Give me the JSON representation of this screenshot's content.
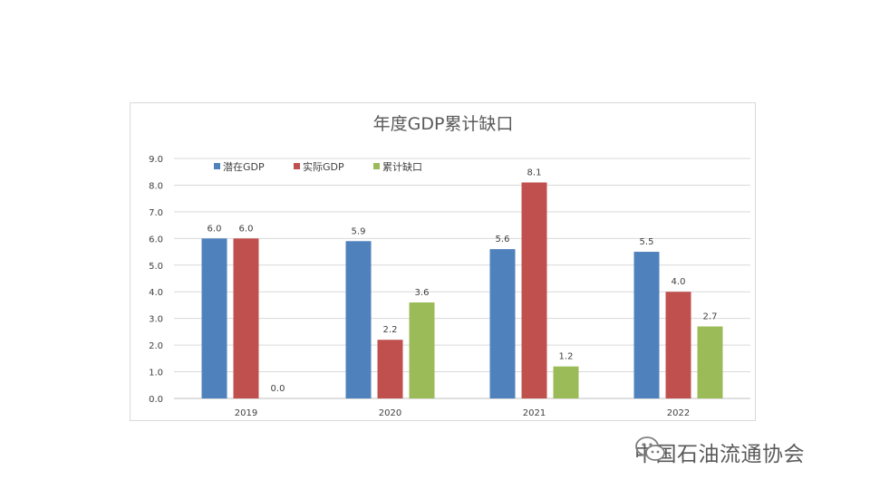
{
  "chart_data": {
    "type": "bar",
    "title": "年度GDP累计缺口",
    "categories": [
      "2019",
      "2020",
      "2021",
      "2022"
    ],
    "series": [
      {
        "name": "潜在GDP",
        "values": [
          6.0,
          5.9,
          5.6,
          5.5
        ],
        "color": "#4f81bd"
      },
      {
        "name": "实际GDP",
        "values": [
          6.0,
          2.2,
          8.1,
          4.0
        ],
        "color": "#c0504d"
      },
      {
        "name": "累计缺口",
        "values": [
          0.0,
          3.6,
          1.2,
          2.7
        ],
        "color": "#9bbb59"
      }
    ],
    "ylim": [
      0,
      9
    ],
    "yticks": [
      "0.0",
      "1.0",
      "2.0",
      "3.0",
      "4.0",
      "5.0",
      "6.0",
      "7.0",
      "8.0",
      "9.0"
    ],
    "grid": true,
    "legend_position": "top-left"
  },
  "watermark": {
    "text": "中国石油流通协会",
    "icon": "wechat-icon"
  }
}
